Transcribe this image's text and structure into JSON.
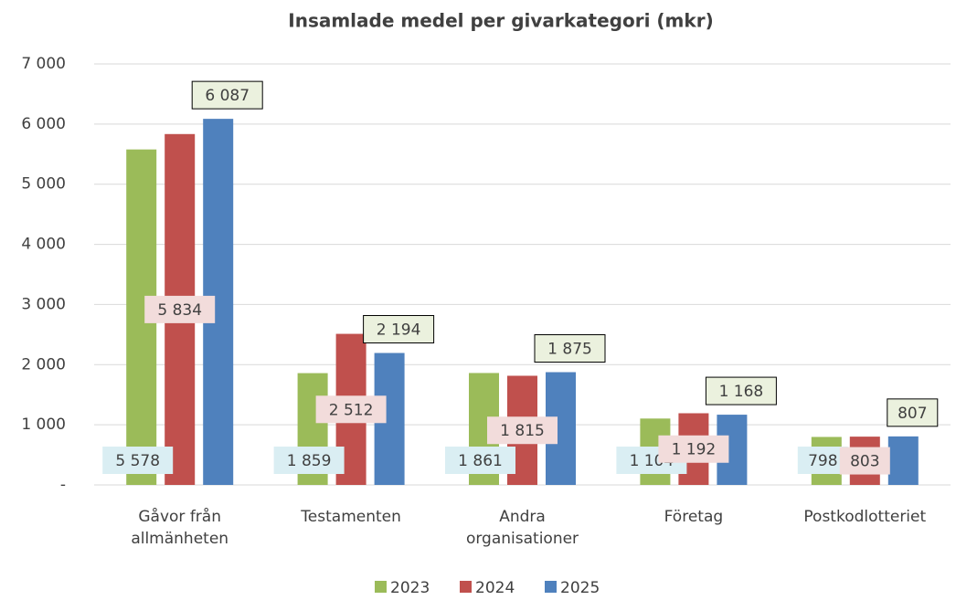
{
  "chart_data": {
    "type": "bar",
    "title": "Insamlade medel per givarkategori (mkr)",
    "categories": [
      "Gåvor från\nallmänheten",
      "Testamenten",
      "Andra\norganisationer",
      "Företag",
      "Postkodlotteriet"
    ],
    "series": [
      {
        "name": "2023",
        "color": "#9bbb59",
        "values": [
          5578,
          1859,
          1861,
          1104,
          798
        ],
        "value_labels": [
          "5 578",
          "1 859",
          "1 861",
          "1 104",
          "798"
        ]
      },
      {
        "name": "2024",
        "color": "#c0504d",
        "values": [
          5834,
          2512,
          1815,
          1192,
          803
        ],
        "value_labels": [
          "5 834",
          "2 512",
          "1 815",
          "1 192",
          "803"
        ]
      },
      {
        "name": "2025",
        "color": "#4f81bd",
        "values": [
          6087,
          2194,
          1875,
          1168,
          807
        ],
        "value_labels": [
          "6 087",
          "2 194",
          "1 875",
          "1 168",
          "807"
        ]
      }
    ],
    "ylim": [
      0,
      7000
    ],
    "yticks": [
      {
        "value": 0,
        "label": "-"
      },
      {
        "value": 1000,
        "label": "1 000"
      },
      {
        "value": 2000,
        "label": "2 000"
      },
      {
        "value": 3000,
        "label": "3 000"
      },
      {
        "value": 4000,
        "label": "4 000"
      },
      {
        "value": 5000,
        "label": "5 000"
      },
      {
        "value": 6000,
        "label": "6 000"
      },
      {
        "value": 7000,
        "label": "7 000"
      }
    ],
    "grid": true,
    "legend": "bottom"
  }
}
